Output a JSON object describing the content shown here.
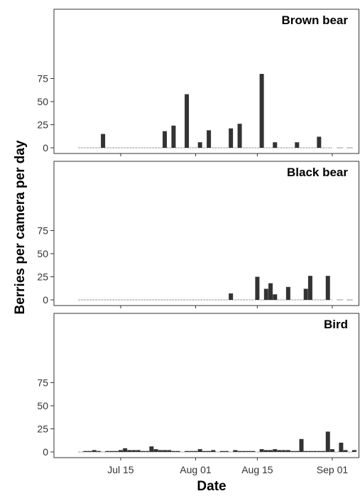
{
  "figure": {
    "xlabel": "Date",
    "ylabel": "Berries per camera per day",
    "x_ticks": [
      "Jul 15",
      "Aug 01",
      "Aug 15",
      "Sep 01"
    ],
    "y_ticks": [
      "0",
      "25",
      "50",
      "75"
    ],
    "bar_color": "#333333",
    "baseline_color": "#aaaaaa"
  },
  "chart_data": [
    {
      "type": "bar",
      "title": "Brown bear",
      "ylim": [
        0,
        80
      ],
      "xlim": [
        "2016-07-01",
        "2016-09-06"
      ],
      "x": [
        "2016-07-11",
        "2016-07-25",
        "2016-07-27",
        "2016-07-30",
        "2016-08-02",
        "2016-08-04",
        "2016-08-09",
        "2016-08-11",
        "2016-08-16",
        "2016-08-19",
        "2016-08-24",
        "2016-08-29"
      ],
      "values": [
        15,
        18,
        24,
        58,
        6,
        19,
        21,
        26,
        80,
        6,
        6,
        12
      ],
      "no_data_after": "2016-09-01"
    },
    {
      "type": "bar",
      "title": "Black bear",
      "ylim": [
        0,
        80
      ],
      "xlim": [
        "2016-07-01",
        "2016-09-06"
      ],
      "x": [
        "2016-08-09",
        "2016-08-15",
        "2016-08-17",
        "2016-08-18",
        "2016-08-19",
        "2016-08-22",
        "2016-08-26",
        "2016-08-27",
        "2016-08-31"
      ],
      "values": [
        7,
        25,
        12,
        18,
        6,
        14,
        12,
        26,
        26
      ],
      "no_data_after": "2016-09-01"
    },
    {
      "type": "bar",
      "title": "Bird",
      "ylim": [
        0,
        80
      ],
      "xlim": [
        "2016-07-01",
        "2016-09-06"
      ],
      "x": [
        "2016-07-07",
        "2016-07-08",
        "2016-07-09",
        "2016-07-10",
        "2016-07-12",
        "2016-07-13",
        "2016-07-14",
        "2016-07-15",
        "2016-07-16",
        "2016-07-17",
        "2016-07-18",
        "2016-07-19",
        "2016-07-20",
        "2016-07-21",
        "2016-07-22",
        "2016-07-23",
        "2016-07-24",
        "2016-07-25",
        "2016-07-26",
        "2016-07-27",
        "2016-07-28",
        "2016-07-30",
        "2016-07-31",
        "2016-08-01",
        "2016-08-02",
        "2016-08-03",
        "2016-08-04",
        "2016-08-05",
        "2016-08-07",
        "2016-08-08",
        "2016-08-10",
        "2016-08-11",
        "2016-08-12",
        "2016-08-13",
        "2016-08-14",
        "2016-08-16",
        "2016-08-17",
        "2016-08-18",
        "2016-08-19",
        "2016-08-20",
        "2016-08-21",
        "2016-08-22",
        "2016-08-23",
        "2016-08-24",
        "2016-08-25",
        "2016-08-26",
        "2016-08-27",
        "2016-08-28",
        "2016-08-29",
        "2016-08-30",
        "2016-08-31",
        "2016-09-01",
        "2016-09-03",
        "2016-09-04",
        "2016-09-06"
      ],
      "values": [
        1,
        1,
        2,
        1,
        1,
        1,
        1,
        2,
        4,
        2,
        2,
        2,
        1,
        1,
        6,
        3,
        2,
        2,
        2,
        1,
        1,
        1,
        1,
        1,
        3,
        1,
        1,
        2,
        1,
        1,
        2,
        1,
        1,
        1,
        1,
        3,
        2,
        2,
        3,
        2,
        2,
        2,
        1,
        1,
        14,
        1,
        1,
        1,
        1,
        1,
        22,
        3,
        10,
        2,
        2
      ]
    }
  ]
}
